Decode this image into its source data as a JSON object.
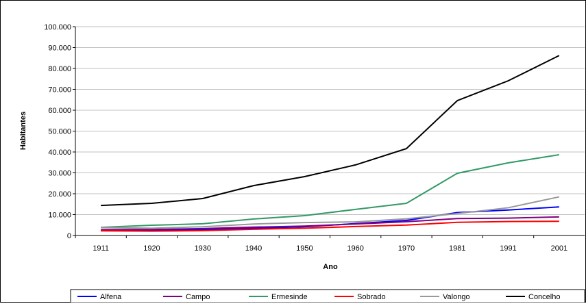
{
  "chart_data": {
    "type": "line",
    "ylabel": "Habitantes",
    "xlabel": "Ano",
    "categories": [
      "1911",
      "1920",
      "1930",
      "1940",
      "1950",
      "1960",
      "1970",
      "1981",
      "1991",
      "2001"
    ],
    "series": [
      {
        "name": "Alfena",
        "color": "#0000ff",
        "values": [
          2500,
          2500,
          2800,
          3500,
          4200,
          5700,
          7200,
          11000,
          12200,
          13700
        ]
      },
      {
        "name": "Campo",
        "color": "#800080",
        "values": [
          2800,
          2900,
          3300,
          4000,
          4500,
          5500,
          6600,
          8100,
          8300,
          8900
        ]
      },
      {
        "name": "Ermesinde",
        "color": "#339966",
        "values": [
          3900,
          4900,
          5600,
          7900,
          9500,
          12500,
          15400,
          29800,
          34800,
          38700
        ]
      },
      {
        "name": "Sobrado",
        "color": "#ff0000",
        "values": [
          2200,
          2100,
          2300,
          3000,
          3500,
          4300,
          5000,
          6300,
          6700,
          6800
        ]
      },
      {
        "name": "Valongo",
        "color": "#999999",
        "values": [
          3800,
          3500,
          4200,
          5500,
          6200,
          6500,
          8000,
          10500,
          13300,
          18500
        ]
      },
      {
        "name": "Concelho",
        "color": "#000000",
        "values": [
          14400,
          15400,
          17700,
          23900,
          28200,
          33800,
          41600,
          64600,
          74100,
          86200
        ]
      }
    ],
    "ylim": [
      0,
      100000
    ],
    "yticks": [
      0,
      {
        "value": 10000,
        "label": "10.000"
      },
      {
        "value": 20000,
        "label": "20.000"
      },
      {
        "value": 30000,
        "label": "30.000"
      },
      {
        "value": 40000,
        "label": "40.000"
      },
      {
        "value": 50000,
        "label": "50.000"
      },
      {
        "value": 60000,
        "label": "60.000"
      },
      {
        "value": 70000,
        "label": "70.000"
      },
      {
        "value": 80000,
        "label": "80.000"
      },
      {
        "value": 90000,
        "label": "90.000"
      },
      {
        "value": 100000,
        "label": "100.000"
      }
    ],
    "grid": true,
    "legend": "bottom"
  }
}
